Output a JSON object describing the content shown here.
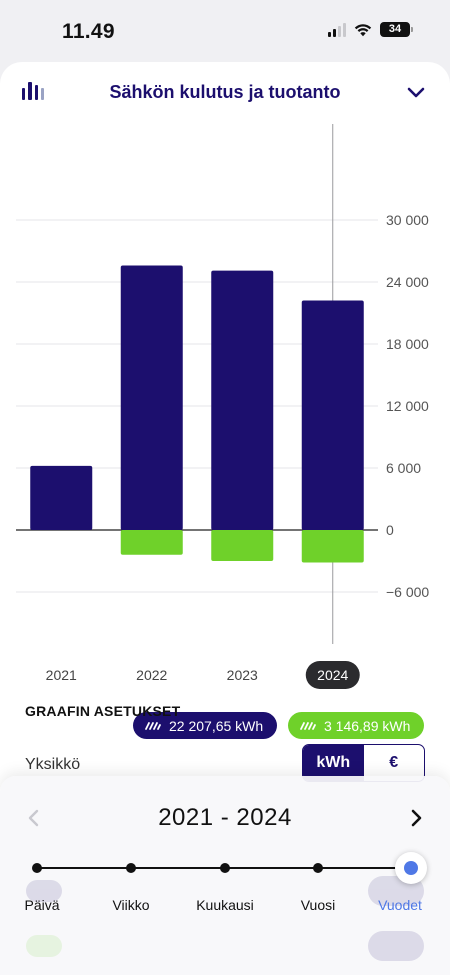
{
  "status_bar": {
    "time": "11.49",
    "battery": "34"
  },
  "header": {
    "title": "Sähkön kulutus ja tuotanto"
  },
  "chart_data": {
    "type": "bar",
    "categories": [
      "2021",
      "2022",
      "2023",
      "2024"
    ],
    "series": [
      {
        "values": [
          6200,
          25600,
          25100,
          22207.65
        ],
        "color": "#1c0f6e"
      },
      {
        "values": [
          0,
          -2400,
          -3000,
          -3146.89
        ],
        "color": "#6fd12a"
      }
    ],
    "ylim": [
      -6000,
      30000
    ],
    "yticks": [
      -6000,
      0,
      6000,
      12000,
      18000,
      24000,
      30000
    ],
    "ytick_labels": [
      "−6 000",
      "0",
      "6 000",
      "12 000",
      "18 000",
      "24 000",
      "30 000"
    ],
    "selected_category": "2024",
    "grid": true
  },
  "totals": {
    "consumption": "22 207,65 kWh",
    "production": "3 146,89 kWh",
    "consumption_color": "#1c0f6e",
    "production_color": "#6fd12a"
  },
  "settings": {
    "title": "GRAAFIN ASETUKSET",
    "unit_label": "Yksikkö",
    "unit_options": [
      "kWh",
      "€"
    ],
    "unit_selected": "kWh"
  },
  "period": {
    "range": "2021 - 2024",
    "scale_options": [
      "Päivä",
      "Viikko",
      "Kuukausi",
      "Vuosi",
      "Vuodet"
    ],
    "selected": "Vuodet"
  }
}
